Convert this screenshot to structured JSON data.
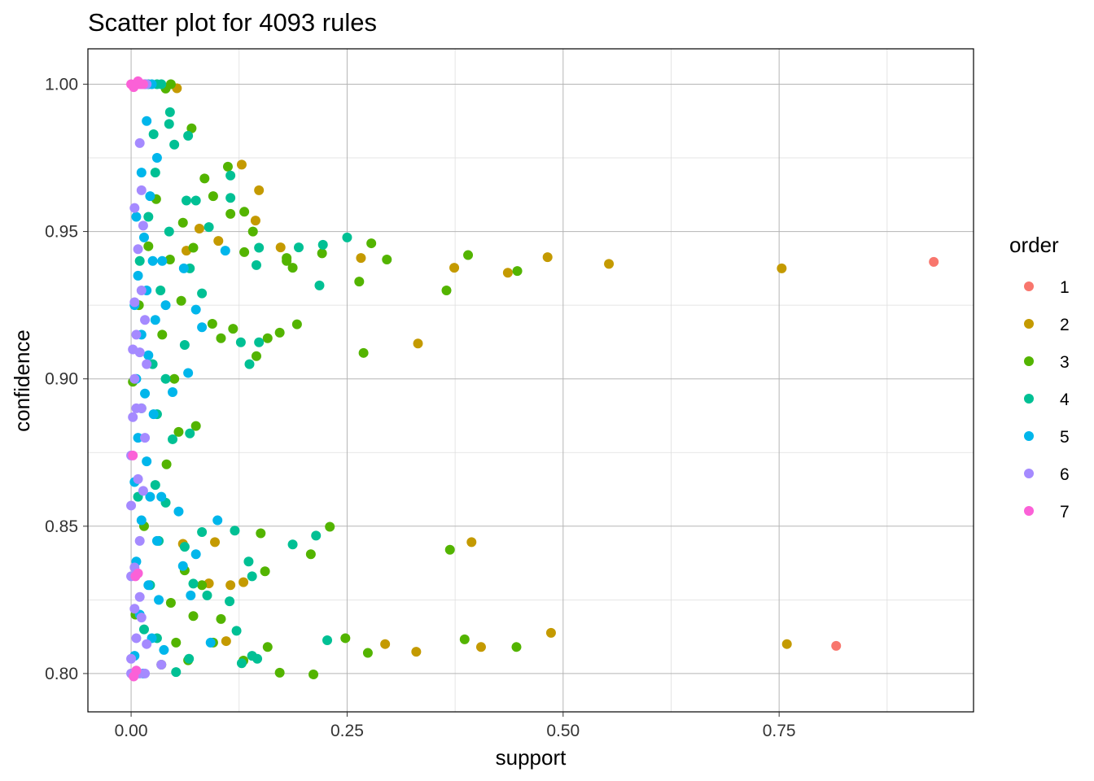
{
  "chart_data": {
    "type": "scatter",
    "title": "Scatter plot for 4093 rules",
    "xlabel": "support",
    "ylabel": "confidence",
    "xlim": [
      -0.05,
      0.975
    ],
    "ylim": [
      0.787,
      1.012
    ],
    "x_ticks": [
      0,
      0.25,
      0.5,
      0.75
    ],
    "x_tick_labels": [
      "0.00",
      "0.25",
      "0.50",
      "0.75"
    ],
    "y_ticks": [
      0.8,
      0.85,
      0.9,
      0.95,
      1.0
    ],
    "y_tick_labels": [
      "0.80",
      "0.85",
      "0.90",
      "0.95",
      "1.00"
    ],
    "grid": true,
    "legend": {
      "title": "order",
      "placement": "right",
      "entries": [
        {
          "label": "1",
          "color": "#F8766D"
        },
        {
          "label": "2",
          "color": "#C49A00"
        },
        {
          "label": "3",
          "color": "#53B400"
        },
        {
          "label": "4",
          "color": "#00C094"
        },
        {
          "label": "5",
          "color": "#00B6EB"
        },
        {
          "label": "6",
          "color": "#A58AFF"
        },
        {
          "label": "7",
          "color": "#FB61D7"
        }
      ]
    },
    "point_format": [
      "support",
      "confidence",
      "order"
    ],
    "points": [
      [
        0.929,
        0.9397,
        1
      ],
      [
        0.816,
        0.8094,
        1
      ],
      [
        0.753,
        0.9375,
        2
      ],
      [
        0.759,
        0.81,
        2
      ],
      [
        0.553,
        0.939,
        2
      ],
      [
        0.482,
        0.9413,
        2
      ],
      [
        0.436,
        0.936,
        2
      ],
      [
        0.374,
        0.9377,
        2
      ],
      [
        0.266,
        0.941,
        2
      ],
      [
        0.332,
        0.912,
        2
      ],
      [
        0.394,
        0.8446,
        2
      ],
      [
        0.486,
        0.8138,
        2
      ],
      [
        0.405,
        0.809,
        2
      ],
      [
        0.33,
        0.8074,
        2
      ],
      [
        0.294,
        0.81,
        2
      ],
      [
        0.173,
        0.9446,
        2
      ],
      [
        0.128,
        0.9727,
        2
      ],
      [
        0.148,
        0.964,
        2
      ],
      [
        0.144,
        0.9537,
        2
      ],
      [
        0.101,
        0.9468,
        2
      ],
      [
        0.097,
        0.8446,
        2
      ],
      [
        0.09,
        0.8306,
        2
      ],
      [
        0.13,
        0.831,
        2
      ],
      [
        0.115,
        0.83,
        2
      ],
      [
        0.11,
        0.811,
        2
      ],
      [
        0.064,
        0.9435,
        2
      ],
      [
        0.079,
        0.951,
        2
      ],
      [
        0.053,
        0.9986,
        2
      ],
      [
        0.06,
        0.844,
        2
      ],
      [
        0.39,
        0.942,
        3
      ],
      [
        0.278,
        0.946,
        3
      ],
      [
        0.296,
        0.9405,
        3
      ],
      [
        0.264,
        0.933,
        3
      ],
      [
        0.365,
        0.93,
        3
      ],
      [
        0.447,
        0.9366,
        3
      ],
      [
        0.269,
        0.9088,
        3
      ],
      [
        0.369,
        0.842,
        3
      ],
      [
        0.386,
        0.8116,
        3
      ],
      [
        0.446,
        0.809,
        3
      ],
      [
        0.274,
        0.807,
        3
      ],
      [
        0.248,
        0.812,
        3
      ],
      [
        0.23,
        0.8498,
        3
      ],
      [
        0.208,
        0.8405,
        3
      ],
      [
        0.211,
        0.7997,
        3
      ],
      [
        0.172,
        0.8003,
        3
      ],
      [
        0.158,
        0.809,
        3
      ],
      [
        0.13,
        0.8044,
        3
      ],
      [
        0.192,
        0.9185,
        3
      ],
      [
        0.172,
        0.9157,
        3
      ],
      [
        0.158,
        0.9138,
        3
      ],
      [
        0.145,
        0.9077,
        3
      ],
      [
        0.187,
        0.9377,
        3
      ],
      [
        0.18,
        0.94,
        3
      ],
      [
        0.18,
        0.941,
        3
      ],
      [
        0.131,
        0.9567,
        3
      ],
      [
        0.115,
        0.956,
        3
      ],
      [
        0.141,
        0.95,
        3
      ],
      [
        0.112,
        0.972,
        3
      ],
      [
        0.15,
        0.8476,
        3
      ],
      [
        0.155,
        0.8347,
        3
      ],
      [
        0.118,
        0.917,
        3
      ],
      [
        0.094,
        0.9187,
        3
      ],
      [
        0.104,
        0.9138,
        3
      ],
      [
        0.131,
        0.943,
        3
      ],
      [
        0.221,
        0.9426,
        3
      ],
      [
        0.07,
        0.985,
        3
      ],
      [
        0.085,
        0.968,
        3
      ],
      [
        0.095,
        0.962,
        3
      ],
      [
        0.06,
        0.953,
        3
      ],
      [
        0.072,
        0.9445,
        3
      ],
      [
        0.055,
        0.882,
        3
      ],
      [
        0.075,
        0.884,
        3
      ],
      [
        0.05,
        0.9,
        3
      ],
      [
        0.062,
        0.835,
        3
      ],
      [
        0.082,
        0.83,
        3
      ],
      [
        0.104,
        0.8185,
        3
      ],
      [
        0.095,
        0.8105,
        3
      ],
      [
        0.072,
        0.8195,
        3
      ],
      [
        0.052,
        0.8105,
        3
      ],
      [
        0.066,
        0.8045,
        3
      ],
      [
        0.046,
        1.0,
        3
      ],
      [
        0.04,
        0.9985,
        3
      ],
      [
        0.058,
        0.9265,
        3
      ],
      [
        0.045,
        0.9405,
        3
      ],
      [
        0.036,
        0.915,
        3
      ],
      [
        0.041,
        0.871,
        3
      ],
      [
        0.046,
        0.824,
        3
      ],
      [
        0.035,
        0.803,
        3
      ],
      [
        0.029,
        0.961,
        3
      ],
      [
        0.02,
        0.945,
        3
      ],
      [
        0.009,
        0.925,
        3
      ],
      [
        0.015,
        0.85,
        3
      ],
      [
        0.005,
        0.82,
        3
      ],
      [
        0.002,
        0.899,
        3
      ],
      [
        0.25,
        0.948,
        4
      ],
      [
        0.222,
        0.9455,
        4
      ],
      [
        0.218,
        0.9317,
        4
      ],
      [
        0.194,
        0.9446,
        4
      ],
      [
        0.214,
        0.8468,
        4
      ],
      [
        0.187,
        0.8438,
        4
      ],
      [
        0.227,
        0.8113,
        4
      ],
      [
        0.146,
        0.805,
        4
      ],
      [
        0.14,
        0.806,
        4
      ],
      [
        0.128,
        0.8035,
        4
      ],
      [
        0.115,
        0.969,
        4
      ],
      [
        0.115,
        0.9614,
        4
      ],
      [
        0.137,
        0.905,
        4
      ],
      [
        0.127,
        0.9124,
        4
      ],
      [
        0.148,
        0.9124,
        4
      ],
      [
        0.12,
        0.8485,
        4
      ],
      [
        0.136,
        0.838,
        4
      ],
      [
        0.14,
        0.833,
        4
      ],
      [
        0.114,
        0.8245,
        4
      ],
      [
        0.122,
        0.8145,
        4
      ],
      [
        0.145,
        0.9386,
        4
      ],
      [
        0.148,
        0.9445,
        4
      ],
      [
        0.09,
        0.9515,
        4
      ],
      [
        0.066,
        0.9825,
        4
      ],
      [
        0.045,
        0.9905,
        4
      ],
      [
        0.044,
        0.9865,
        4
      ],
      [
        0.05,
        0.9795,
        4
      ],
      [
        0.064,
        0.9605,
        4
      ],
      [
        0.075,
        0.9605,
        4
      ],
      [
        0.082,
        0.929,
        4
      ],
      [
        0.068,
        0.9375,
        4
      ],
      [
        0.062,
        0.9115,
        4
      ],
      [
        0.048,
        0.8795,
        4
      ],
      [
        0.068,
        0.8815,
        4
      ],
      [
        0.04,
        0.858,
        4
      ],
      [
        0.062,
        0.843,
        4
      ],
      [
        0.082,
        0.848,
        4
      ],
      [
        0.072,
        0.8305,
        4
      ],
      [
        0.088,
        0.8265,
        4
      ],
      [
        0.052,
        0.8005,
        4
      ],
      [
        0.067,
        0.805,
        4
      ],
      [
        0.03,
        1.0,
        4
      ],
      [
        0.02,
        1.0,
        4
      ],
      [
        0.035,
        1.0,
        4
      ],
      [
        0.026,
        0.983,
        4
      ],
      [
        0.028,
        0.97,
        4
      ],
      [
        0.02,
        0.955,
        4
      ],
      [
        0.034,
        0.93,
        4
      ],
      [
        0.025,
        0.905,
        4
      ],
      [
        0.03,
        0.888,
        4
      ],
      [
        0.028,
        0.864,
        4
      ],
      [
        0.032,
        0.845,
        4
      ],
      [
        0.022,
        0.83,
        4
      ],
      [
        0.03,
        0.812,
        4
      ],
      [
        0.01,
        0.94,
        4
      ],
      [
        0.012,
        0.89,
        4
      ],
      [
        0.008,
        0.86,
        4
      ],
      [
        0.015,
        0.815,
        4
      ],
      [
        0.04,
        0.9,
        4
      ],
      [
        0.044,
        0.95,
        4
      ],
      [
        0.109,
        0.9435,
        5
      ],
      [
        0.1,
        0.852,
        5
      ],
      [
        0.061,
        0.9375,
        5
      ],
      [
        0.075,
        0.8405,
        5
      ],
      [
        0.06,
        0.8365,
        5
      ],
      [
        0.069,
        0.8265,
        5
      ],
      [
        0.092,
        0.8105,
        5
      ],
      [
        0.082,
        0.9175,
        5
      ],
      [
        0.066,
        0.902,
        5
      ],
      [
        0.075,
        0.9235,
        5
      ],
      [
        0.048,
        0.8955,
        5
      ],
      [
        0.055,
        0.855,
        5
      ],
      [
        0.018,
        0.9875,
        5
      ],
      [
        0.03,
        0.975,
        5
      ],
      [
        0.012,
        0.97,
        5
      ],
      [
        0.022,
        0.962,
        5
      ],
      [
        0.006,
        0.955,
        5
      ],
      [
        0.015,
        0.948,
        5
      ],
      [
        0.025,
        0.94,
        5
      ],
      [
        0.008,
        0.935,
        5
      ],
      [
        0.018,
        0.93,
        5
      ],
      [
        0.004,
        0.925,
        5
      ],
      [
        0.028,
        0.92,
        5
      ],
      [
        0.012,
        0.915,
        5
      ],
      [
        0.02,
        0.908,
        5
      ],
      [
        0.006,
        0.9,
        5
      ],
      [
        0.016,
        0.895,
        5
      ],
      [
        0.026,
        0.888,
        5
      ],
      [
        0.008,
        0.88,
        5
      ],
      [
        0.018,
        0.872,
        5
      ],
      [
        0.004,
        0.865,
        5
      ],
      [
        0.022,
        0.86,
        5
      ],
      [
        0.012,
        0.852,
        5
      ],
      [
        0.03,
        0.845,
        5
      ],
      [
        0.006,
        0.838,
        5
      ],
      [
        0.02,
        0.83,
        5
      ],
      [
        0.032,
        0.825,
        5
      ],
      [
        0.01,
        0.82,
        5
      ],
      [
        0.024,
        0.812,
        5
      ],
      [
        0.004,
        0.806,
        5
      ],
      [
        0.038,
        0.808,
        5
      ],
      [
        0.014,
        0.8,
        5
      ],
      [
        0.016,
        1.0,
        5
      ],
      [
        0.024,
        1.0,
        5
      ],
      [
        0.035,
        0.86,
        5
      ],
      [
        0.036,
        0.94,
        5
      ],
      [
        0.04,
        0.925,
        5
      ],
      [
        0.01,
        0.98,
        6
      ],
      [
        0.012,
        0.964,
        6
      ],
      [
        0.004,
        0.958,
        6
      ],
      [
        0.014,
        0.952,
        6
      ],
      [
        0.008,
        0.944,
        6
      ],
      [
        0.012,
        0.93,
        6
      ],
      [
        0.004,
        0.926,
        6
      ],
      [
        0.016,
        0.92,
        6
      ],
      [
        0.006,
        0.915,
        6
      ],
      [
        0.01,
        0.909,
        6
      ],
      [
        0.018,
        0.905,
        6
      ],
      [
        0.004,
        0.9,
        6
      ],
      [
        0.012,
        0.89,
        6
      ],
      [
        0.002,
        0.887,
        6
      ],
      [
        0.016,
        0.88,
        6
      ],
      [
        0.0,
        0.874,
        6
      ],
      [
        0.008,
        0.866,
        6
      ],
      [
        0.014,
        0.862,
        6
      ],
      [
        0.0,
        0.857,
        6
      ],
      [
        0.01,
        0.845,
        6
      ],
      [
        0.004,
        0.836,
        6
      ],
      [
        0.0,
        0.833,
        6
      ],
      [
        0.01,
        0.826,
        6
      ],
      [
        0.004,
        0.822,
        6
      ],
      [
        0.012,
        0.819,
        6
      ],
      [
        0.006,
        0.812,
        6
      ],
      [
        0.0,
        0.805,
        6
      ],
      [
        0.01,
        0.8,
        6
      ],
      [
        0.016,
        0.8,
        6
      ],
      [
        0.0,
        0.8,
        6
      ],
      [
        0.018,
        0.81,
        6
      ],
      [
        0.035,
        0.803,
        6
      ],
      [
        0.012,
        1.0,
        6
      ],
      [
        0.018,
        1.0,
        6
      ],
      [
        0.006,
        0.89,
        6
      ],
      [
        0.002,
        0.91,
        6
      ],
      [
        0.0,
        1.0,
        7
      ],
      [
        0.005,
        1.0,
        7
      ],
      [
        0.01,
        1.0,
        7
      ],
      [
        0.014,
        1.0,
        7
      ],
      [
        0.003,
        0.999,
        7
      ],
      [
        0.008,
        1.001,
        7
      ],
      [
        0.002,
        0.874,
        7
      ],
      [
        0.005,
        0.833,
        7
      ],
      [
        0.008,
        0.834,
        7
      ],
      [
        0.006,
        0.801,
        7
      ],
      [
        0.003,
        0.799,
        7
      ]
    ]
  }
}
